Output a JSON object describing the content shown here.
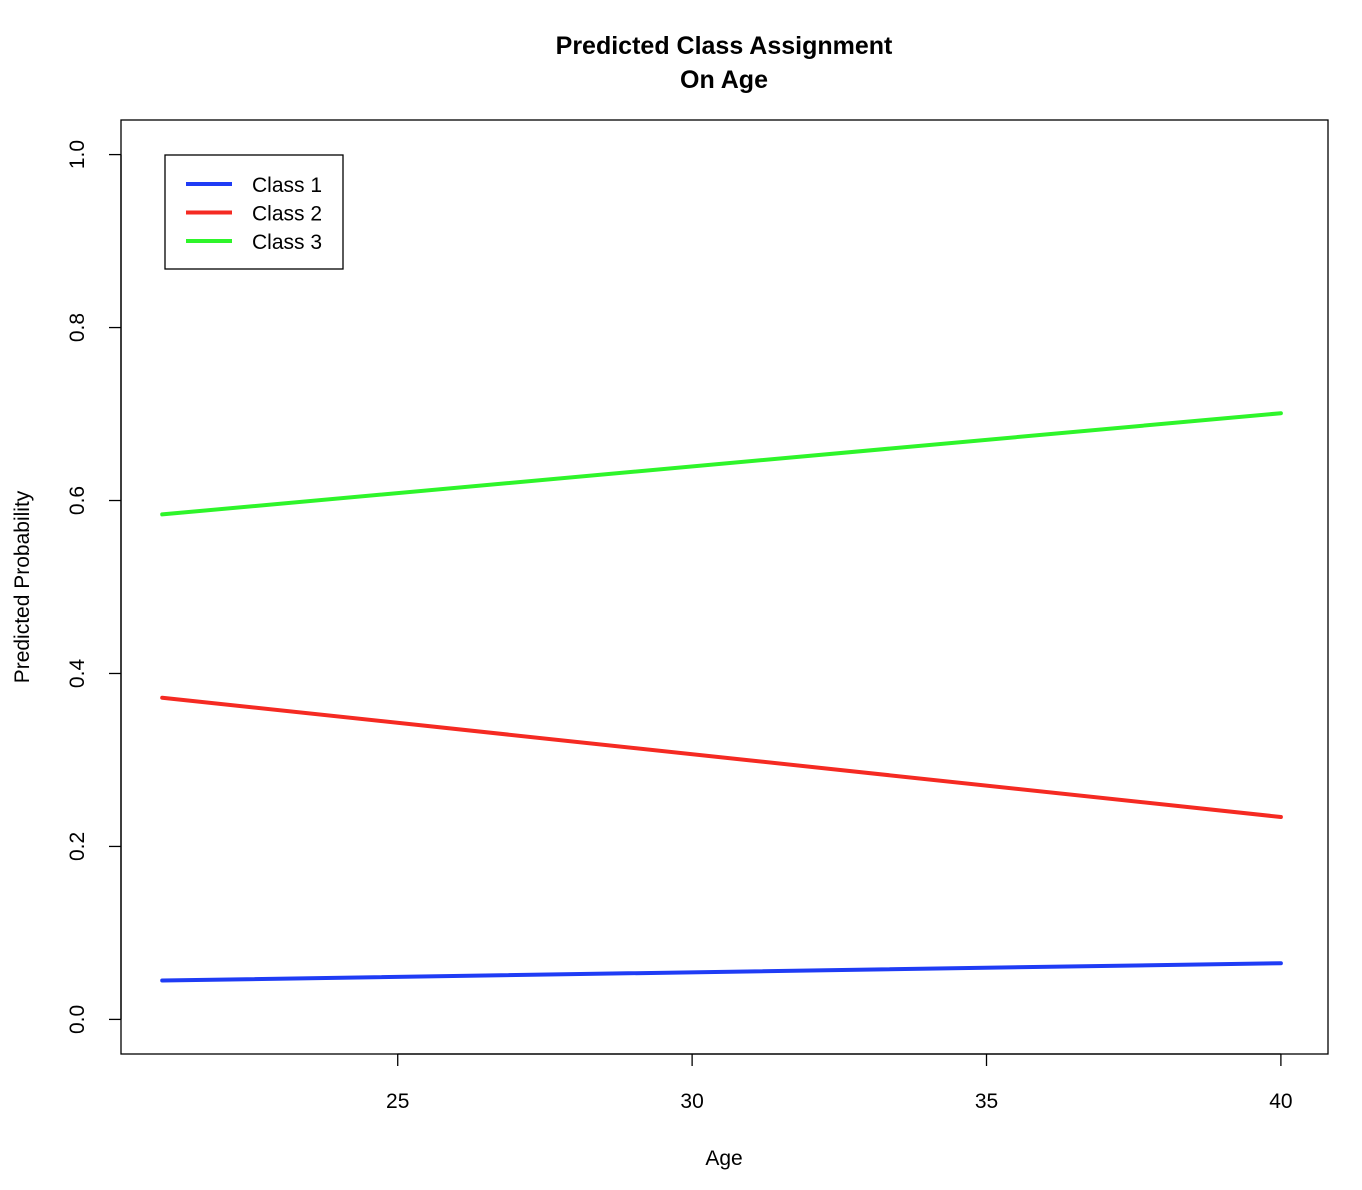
{
  "chart_data": {
    "type": "line",
    "title": [
      "Predicted Class Assignment",
      "On Age"
    ],
    "xlabel": "Age",
    "ylabel": "Predicted Probability",
    "xlim": [
      20.3,
      40.8
    ],
    "ylim": [
      -0.04,
      1.04
    ],
    "x_ticks": [
      25,
      30,
      35,
      40
    ],
    "y_ticks": [
      0.0,
      0.2,
      0.4,
      0.6,
      0.8,
      1.0
    ],
    "y_tick_labels": [
      "0.0",
      "0.2",
      "0.4",
      "0.6",
      "0.8",
      "1.0"
    ],
    "grid": false,
    "legend_position": "top-left",
    "x": [
      21,
      40
    ],
    "series": [
      {
        "name": "Class 1",
        "color": "#1f3cf5",
        "values": [
          0.045,
          0.065
        ]
      },
      {
        "name": "Class 2",
        "color": "#f52a22",
        "values": [
          0.372,
          0.234
        ]
      },
      {
        "name": "Class 3",
        "color": "#2ef52a",
        "values": [
          0.584,
          0.701
        ]
      }
    ]
  }
}
